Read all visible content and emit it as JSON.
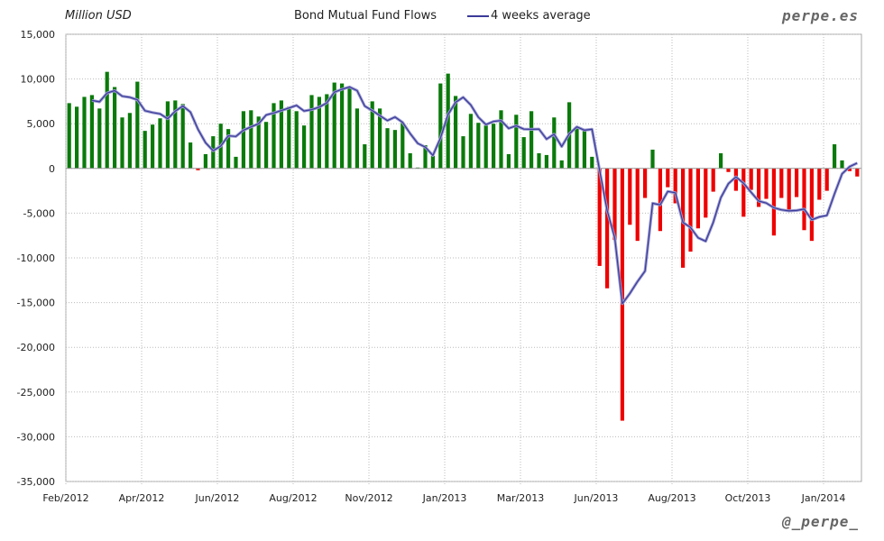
{
  "chart_data": {
    "type": "bar",
    "title": "Bond Mutual Fund Flows",
    "ylabel": "Million USD",
    "xlabel": "",
    "ylim": [
      -35000,
      15000
    ],
    "yticks": [
      15000,
      10000,
      5000,
      0,
      -5000,
      -10000,
      -15000,
      -20000,
      -25000,
      -30000,
      -35000
    ],
    "ytick_labels": [
      "15,000",
      "10,000",
      "5,000",
      "0",
      "-5,000",
      "-10,000",
      "-15,000",
      "-20,000",
      "-25,000",
      "-30,000",
      "-35,000"
    ],
    "xtick_labels": [
      "Feb/2012",
      "Apr/2012",
      "Jun/2012",
      "Aug/2012",
      "Nov/2012",
      "Jan/2013",
      "Mar/2013",
      "Jun/2013",
      "Aug/2013",
      "Oct/2013",
      "Jan/2014"
    ],
    "grid": true,
    "legend": {
      "position": "top",
      "entries": [
        "4 weeks average"
      ]
    },
    "colors": {
      "positive": "#0a7a0a",
      "negative": "#ee0000",
      "average_line": "#3a3a9a"
    },
    "series": [
      {
        "type": "bar",
        "values": [
          7300,
          6900,
          8000,
          8200,
          6700,
          10800,
          9100,
          5700,
          6200,
          9700,
          4200,
          4900,
          5600,
          7500,
          7600,
          7200,
          2900,
          -200,
          1600,
          3600,
          5000,
          4400,
          1300,
          6400,
          6500,
          5800,
          5200,
          7300,
          7600,
          6900,
          6400,
          4800,
          8200,
          8000,
          8300,
          9600,
          9500,
          9000,
          6700,
          2700,
          7500,
          6700,
          4500,
          4300,
          5100,
          1700,
          100,
          2600,
          1400,
          9500,
          10600,
          8100,
          3600,
          6100,
          5100,
          4800,
          5000,
          6500,
          1600,
          6000,
          3500,
          6400,
          1700,
          1500,
          5700,
          900,
          7400,
          4600,
          4200,
          1300,
          -10900,
          -13400,
          -8000,
          -28200,
          -6300,
          -8100,
          -3300,
          2100,
          -7000,
          -2100,
          -3900,
          -11100,
          -9300,
          -6700,
          -5500,
          -2600,
          1700,
          -400,
          -2500,
          -5400,
          -2400,
          -4300,
          -3400,
          -7500,
          -3300,
          -4800,
          -3200,
          -6900,
          -8100,
          -3500,
          -2500,
          2700,
          900,
          -300,
          -900
        ]
      },
      {
        "type": "line",
        "name": "4 weeks average",
        "window": 4
      }
    ]
  },
  "header": {
    "unit_label": "Million USD",
    "title": "Bond Mutual Fund Flows",
    "legend_label": "4 weeks average",
    "brand": "perpe.es"
  },
  "footer": {
    "handle": "@_perpe_"
  }
}
